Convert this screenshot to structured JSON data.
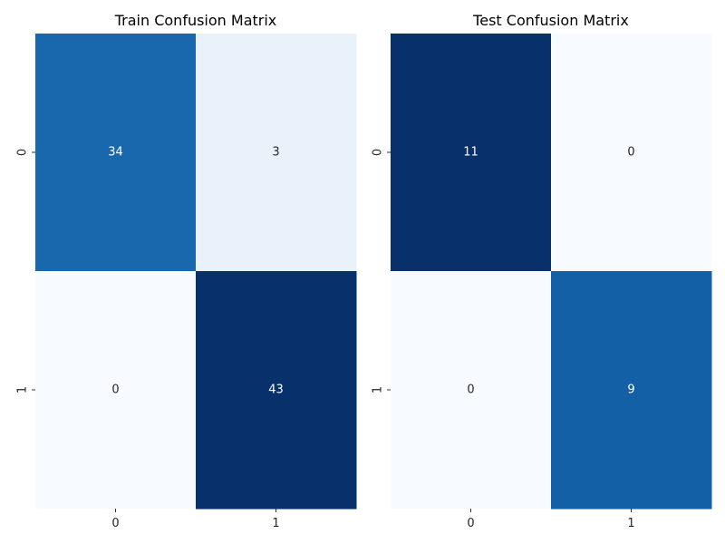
{
  "chart_data": [
    {
      "type": "heatmap",
      "title": "Train Confusion Matrix",
      "x_tick_labels": [
        "0",
        "1"
      ],
      "y_tick_labels": [
        "0",
        "1"
      ],
      "values": [
        [
          34,
          3
        ],
        [
          0,
          43
        ]
      ],
      "colormap": "Blues",
      "annotated": true,
      "colorbar": false
    },
    {
      "type": "heatmap",
      "title": "Test Confusion Matrix",
      "x_tick_labels": [
        "0",
        "1"
      ],
      "y_tick_labels": [
        "0",
        "1"
      ],
      "values": [
        [
          11,
          0
        ],
        [
          0,
          9
        ]
      ],
      "colormap": "Blues",
      "annotated": true,
      "colorbar": false
    }
  ]
}
